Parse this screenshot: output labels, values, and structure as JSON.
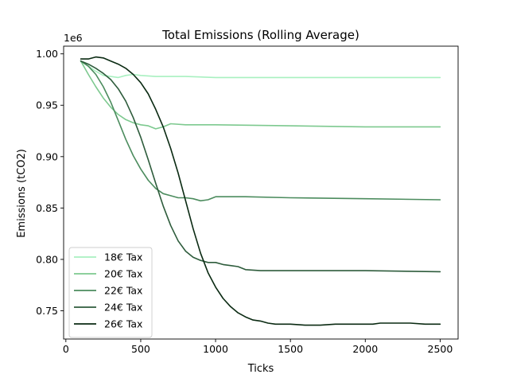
{
  "chart_data": {
    "type": "line",
    "title": "Total Emissions (Rolling Average)",
    "xlabel": "Ticks",
    "ylabel": "Emissions (tCO2)",
    "offset_label": "1e6",
    "xlim": [
      -15,
      2620
    ],
    "ylim": [
      0.7225,
      1.0075
    ],
    "xticks": [
      0,
      500,
      1000,
      1500,
      2000,
      2500
    ],
    "xtick_labels": [
      "0",
      "500",
      "1000",
      "1500",
      "2000",
      "2500"
    ],
    "yticks": [
      0.75,
      0.8,
      0.85,
      0.9,
      0.95,
      1.0
    ],
    "ytick_labels": [
      "0.75",
      "0.80",
      "0.85",
      "0.90",
      "0.95",
      "1.00"
    ],
    "grid": false,
    "legend_position": "lower-left",
    "series": [
      {
        "name": "18€ Tax",
        "color": "#a8f0c0",
        "points": [
          [
            100,
            0.993
          ],
          [
            150,
            0.988
          ],
          [
            200,
            0.983
          ],
          [
            250,
            0.979
          ],
          [
            300,
            0.978
          ],
          [
            350,
            0.977
          ],
          [
            400,
            0.979
          ],
          [
            450,
            0.98
          ],
          [
            500,
            0.979
          ],
          [
            600,
            0.978
          ],
          [
            700,
            0.978
          ],
          [
            800,
            0.978
          ],
          [
            1000,
            0.977
          ],
          [
            1500,
            0.977
          ],
          [
            2000,
            0.977
          ],
          [
            2500,
            0.977
          ]
        ]
      },
      {
        "name": "20€ Tax",
        "color": "#7dc98f",
        "points": [
          [
            100,
            0.993
          ],
          [
            150,
            0.98
          ],
          [
            200,
            0.968
          ],
          [
            250,
            0.957
          ],
          [
            300,
            0.948
          ],
          [
            350,
            0.941
          ],
          [
            400,
            0.936
          ],
          [
            450,
            0.933
          ],
          [
            500,
            0.931
          ],
          [
            550,
            0.93
          ],
          [
            600,
            0.927
          ],
          [
            650,
            0.929
          ],
          [
            700,
            0.932
          ],
          [
            800,
            0.931
          ],
          [
            1000,
            0.931
          ],
          [
            1500,
            0.93
          ],
          [
            2000,
            0.929
          ],
          [
            2500,
            0.929
          ]
        ]
      },
      {
        "name": "22€ Tax",
        "color": "#4c8c5e",
        "points": [
          [
            100,
            0.993
          ],
          [
            150,
            0.988
          ],
          [
            200,
            0.98
          ],
          [
            250,
            0.968
          ],
          [
            300,
            0.953
          ],
          [
            350,
            0.935
          ],
          [
            400,
            0.917
          ],
          [
            450,
            0.901
          ],
          [
            500,
            0.888
          ],
          [
            550,
            0.877
          ],
          [
            600,
            0.869
          ],
          [
            650,
            0.864
          ],
          [
            700,
            0.862
          ],
          [
            750,
            0.86
          ],
          [
            800,
            0.86
          ],
          [
            850,
            0.859
          ],
          [
            900,
            0.857
          ],
          [
            950,
            0.858
          ],
          [
            1000,
            0.861
          ],
          [
            1200,
            0.861
          ],
          [
            1500,
            0.86
          ],
          [
            2000,
            0.859
          ],
          [
            2500,
            0.858
          ]
        ]
      },
      {
        "name": "24€ Tax",
        "color": "#2e5c3c",
        "points": [
          [
            100,
            0.993
          ],
          [
            150,
            0.99
          ],
          [
            200,
            0.986
          ],
          [
            250,
            0.981
          ],
          [
            300,
            0.975
          ],
          [
            350,
            0.966
          ],
          [
            400,
            0.954
          ],
          [
            450,
            0.938
          ],
          [
            500,
            0.919
          ],
          [
            550,
            0.897
          ],
          [
            600,
            0.874
          ],
          [
            650,
            0.852
          ],
          [
            700,
            0.833
          ],
          [
            750,
            0.818
          ],
          [
            800,
            0.808
          ],
          [
            850,
            0.802
          ],
          [
            900,
            0.799
          ],
          [
            950,
            0.797
          ],
          [
            1000,
            0.797
          ],
          [
            1050,
            0.795
          ],
          [
            1100,
            0.794
          ],
          [
            1150,
            0.793
          ],
          [
            1200,
            0.79
          ],
          [
            1300,
            0.789
          ],
          [
            1500,
            0.789
          ],
          [
            2000,
            0.789
          ],
          [
            2500,
            0.788
          ]
        ]
      },
      {
        "name": "26€ Tax",
        "color": "#0a2a12",
        "points": [
          [
            100,
            0.995
          ],
          [
            150,
            0.995
          ],
          [
            200,
            0.997
          ],
          [
            250,
            0.996
          ],
          [
            300,
            0.993
          ],
          [
            350,
            0.99
          ],
          [
            400,
            0.986
          ],
          [
            450,
            0.98
          ],
          [
            500,
            0.972
          ],
          [
            550,
            0.961
          ],
          [
            600,
            0.946
          ],
          [
            650,
            0.929
          ],
          [
            700,
            0.908
          ],
          [
            750,
            0.884
          ],
          [
            800,
            0.857
          ],
          [
            850,
            0.83
          ],
          [
            900,
            0.806
          ],
          [
            950,
            0.787
          ],
          [
            1000,
            0.773
          ],
          [
            1050,
            0.762
          ],
          [
            1100,
            0.754
          ],
          [
            1150,
            0.748
          ],
          [
            1200,
            0.744
          ],
          [
            1250,
            0.741
          ],
          [
            1300,
            0.74
          ],
          [
            1350,
            0.738
          ],
          [
            1400,
            0.737
          ],
          [
            1500,
            0.737
          ],
          [
            1600,
            0.736
          ],
          [
            1700,
            0.736
          ],
          [
            1800,
            0.737
          ],
          [
            1900,
            0.737
          ],
          [
            2000,
            0.737
          ],
          [
            2050,
            0.737
          ],
          [
            2100,
            0.738
          ],
          [
            2200,
            0.738
          ],
          [
            2300,
            0.738
          ],
          [
            2400,
            0.737
          ],
          [
            2500,
            0.737
          ]
        ]
      }
    ]
  }
}
